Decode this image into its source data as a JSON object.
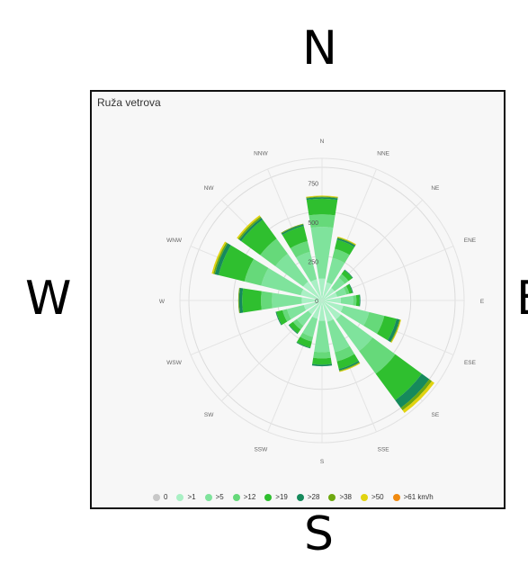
{
  "compass": {
    "n": "N",
    "s": "S",
    "w": "W",
    "e": "E"
  },
  "panel": {
    "title": "Ruža vetrova"
  },
  "chart_data": {
    "type": "polar-stacked-bar",
    "title": "Ruža vetrova",
    "directions": [
      "N",
      "NNE",
      "NE",
      "ENE",
      "E",
      "ESE",
      "SE",
      "SSE",
      "S",
      "SSW",
      "SW",
      "WSW",
      "W",
      "WNW",
      "NW",
      "NNW"
    ],
    "radial_ticks": [
      0,
      250,
      500,
      750
    ],
    "rmax": 850,
    "series": [
      {
        "name": "0",
        "color": "#c8c8c8",
        "values": [
          0,
          0,
          0,
          0,
          0,
          0,
          0,
          0,
          0,
          0,
          0,
          0,
          0,
          0,
          0,
          0
        ]
      },
      {
        "name": ">1",
        "color": "#a9f0c4",
        "values": [
          140,
          120,
          100,
          100,
          120,
          140,
          150,
          140,
          130,
          120,
          110,
          120,
          130,
          140,
          150,
          140
        ]
      },
      {
        "name": ">5",
        "color": "#7fe39c",
        "values": [
          330,
          160,
          80,
          60,
          80,
          170,
          250,
          200,
          200,
          120,
          90,
          110,
          190,
          260,
          220,
          180
        ]
      },
      {
        "name": ">12",
        "color": "#66d97a",
        "values": [
          80,
          60,
          30,
          20,
          20,
          100,
          180,
          60,
          40,
          30,
          30,
          30,
          70,
          110,
          120,
          70
        ]
      },
      {
        "name": ">19",
        "color": "#2fbf2f",
        "values": [
          100,
          60,
          30,
          20,
          20,
          80,
          210,
          50,
          40,
          40,
          30,
          40,
          120,
          170,
          150,
          100
        ]
      },
      {
        "name": ">28",
        "color": "#168a5c",
        "values": [
          10,
          10,
          5,
          5,
          5,
          20,
          60,
          10,
          10,
          5,
          5,
          5,
          20,
          25,
          15,
          10
        ]
      },
      {
        "name": ">38",
        "color": "#6ea80f",
        "values": [
          5,
          5,
          0,
          0,
          0,
          5,
          20,
          5,
          0,
          0,
          0,
          0,
          5,
          10,
          10,
          5
        ]
      },
      {
        "name": ">50",
        "color": "#e1d30f",
        "values": [
          5,
          5,
          0,
          0,
          0,
          5,
          20,
          5,
          0,
          0,
          0,
          0,
          0,
          10,
          10,
          0
        ]
      },
      {
        "name": ">61 km/h",
        "color": "#f08a10",
        "values": [
          0,
          0,
          0,
          0,
          0,
          0,
          0,
          0,
          0,
          0,
          0,
          0,
          0,
          0,
          0,
          0
        ]
      }
    ],
    "grid": true,
    "legend_position": "bottom"
  }
}
